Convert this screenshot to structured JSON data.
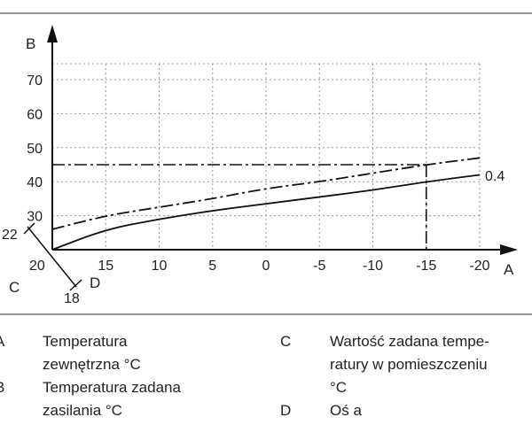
{
  "chart_data": {
    "type": "line",
    "x_axis_letter": "A",
    "y_axis_letter": "B",
    "x_ticks": [
      15,
      10,
      5,
      0,
      -5,
      -10,
      -15,
      -20
    ],
    "x_tick_labels": [
      "15",
      "10",
      "5",
      "0",
      "-5",
      "-10",
      "-15",
      "-20"
    ],
    "x_origin_label": "20",
    "y_ticks": [
      30,
      40,
      50,
      60,
      70
    ],
    "y_tick_labels": [
      "30",
      "40",
      "50",
      "60",
      "70"
    ],
    "xlim": [
      20,
      -20
    ],
    "ylim": [
      20,
      75
    ],
    "grid": true,
    "series": [
      {
        "name": "0.4",
        "style": "solid",
        "x": [
          20,
          15,
          10,
          5,
          0,
          -5,
          -10,
          -15,
          -20
        ],
        "y": [
          20,
          26,
          29,
          31.5,
          33.5,
          35.5,
          37.5,
          40,
          42
        ]
      },
      {
        "name": "",
        "style": "dash-dot",
        "x": [
          20,
          15,
          10,
          5,
          0,
          -5,
          -10,
          -15,
          -20
        ],
        "y": [
          26,
          30,
          32.5,
          35,
          38,
          40,
          42.5,
          45,
          47
        ]
      }
    ],
    "reference_lines": {
      "y_value": 45,
      "x_value": -15
    },
    "shift_axis": {
      "letter_c": "C",
      "letter_d": "D",
      "top_value": "22",
      "bottom_value": "18"
    }
  },
  "legend": {
    "items": [
      {
        "key": "A",
        "text": "Temperatura\nzewnętrzna °C"
      },
      {
        "key": "B",
        "text": "Temperatura zadana\nzasilania °C"
      },
      {
        "key": "C",
        "text": "Wartość zadana tempe-\nratury w pomieszczeniu\n°C"
      },
      {
        "key": "D",
        "text": "Oś a"
      }
    ]
  },
  "colors": {
    "line": "#111111",
    "grid": "#999999"
  }
}
